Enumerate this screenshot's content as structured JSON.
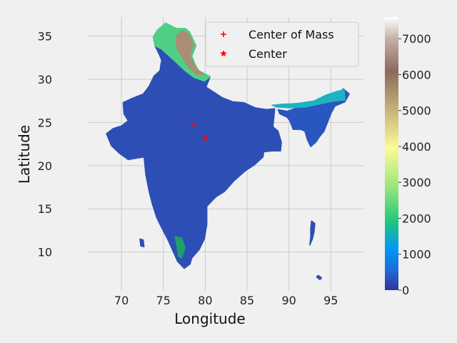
{
  "chart_data": {
    "type": "scatter",
    "title": "",
    "xlabel": "Longitude",
    "ylabel": "Latitude",
    "xlim": [
      65.9,
      98.9
    ],
    "ylim": [
      5.5,
      37.2
    ],
    "xticks": [
      70,
      75,
      80,
      85,
      90,
      95
    ],
    "yticks": [
      10,
      15,
      20,
      25,
      30,
      35
    ],
    "grid": true,
    "legend_position": "top-right",
    "series": [
      {
        "name": "Center of Mass",
        "marker": "plus",
        "color": "#ff0000",
        "points": [
          [
            78.6,
            24.8
          ]
        ]
      },
      {
        "name": "Center",
        "marker": "star",
        "color": "#ff0000",
        "points": [
          [
            80.0,
            23.2
          ]
        ]
      }
    ],
    "colorbar": {
      "colormap": "terrain",
      "range": [
        0,
        7600
      ],
      "ticks": [
        0,
        1000,
        2000,
        3000,
        4000,
        5000,
        6000,
        7000
      ]
    },
    "regions": {
      "mainland": [
        [
          68.2,
          23.7
        ],
        [
          68.8,
          22.3
        ],
        [
          69.8,
          21.4
        ],
        [
          70.8,
          20.7
        ],
        [
          72.7,
          21.0
        ],
        [
          72.9,
          19.0
        ],
        [
          73.3,
          17.0
        ],
        [
          73.7,
          15.5
        ],
        [
          74.2,
          14.0
        ],
        [
          74.8,
          12.8
        ],
        [
          75.5,
          11.5
        ],
        [
          76.2,
          10.0
        ],
        [
          76.7,
          8.9
        ],
        [
          77.5,
          8.1
        ],
        [
          78.2,
          8.6
        ],
        [
          78.4,
          9.3
        ],
        [
          79.3,
          10.3
        ],
        [
          79.9,
          11.5
        ],
        [
          80.2,
          13.2
        ],
        [
          80.2,
          15.3
        ],
        [
          81.3,
          16.4
        ],
        [
          82.3,
          17.0
        ],
        [
          83.4,
          18.2
        ],
        [
          84.8,
          19.4
        ],
        [
          85.9,
          20.1
        ],
        [
          86.9,
          21.0
        ],
        [
          87.0,
          21.6
        ],
        [
          88.0,
          21.7
        ],
        [
          89.0,
          21.7
        ],
        [
          89.1,
          22.7
        ],
        [
          88.7,
          24.0
        ],
        [
          88.1,
          24.5
        ],
        [
          88.2,
          25.5
        ],
        [
          88.3,
          26.6
        ],
        [
          87.3,
          26.5
        ],
        [
          86.0,
          26.7
        ],
        [
          84.6,
          27.3
        ],
        [
          83.3,
          27.4
        ],
        [
          82.0,
          27.9
        ],
        [
          80.9,
          28.6
        ],
        [
          80.1,
          29.1
        ],
        [
          80.6,
          30.3
        ],
        [
          79.2,
          31.0
        ],
        [
          78.8,
          31.7
        ],
        [
          78.4,
          32.7
        ],
        [
          78.9,
          33.9
        ],
        [
          78.1,
          35.5
        ],
        [
          77.6,
          35.9
        ],
        [
          76.5,
          35.9
        ],
        [
          75.3,
          36.5
        ],
        [
          74.3,
          35.7
        ],
        [
          73.8,
          34.9
        ],
        [
          74.0,
          33.9
        ],
        [
          74.5,
          32.9
        ],
        [
          74.8,
          32.2
        ],
        [
          74.7,
          31.7
        ],
        [
          74.6,
          31.0
        ],
        [
          73.9,
          30.4
        ],
        [
          73.3,
          29.2
        ],
        [
          72.6,
          28.3
        ],
        [
          71.3,
          27.8
        ],
        [
          70.2,
          27.3
        ],
        [
          70.3,
          26.0
        ],
        [
          70.8,
          25.2
        ],
        [
          70.0,
          24.6
        ],
        [
          69.0,
          24.3
        ]
      ],
      "northeast": [
        [
          88.7,
          26.5
        ],
        [
          89.8,
          26.3
        ],
        [
          91.5,
          26.9
        ],
        [
          93.0,
          27.0
        ],
        [
          94.2,
          27.6
        ],
        [
          95.4,
          28.0
        ],
        [
          96.5,
          28.9
        ],
        [
          97.2,
          28.3
        ],
        [
          96.7,
          27.4
        ],
        [
          95.5,
          26.9
        ],
        [
          95.0,
          26.0
        ],
        [
          94.6,
          25.0
        ],
        [
          94.2,
          24.0
        ],
        [
          93.7,
          23.4
        ],
        [
          93.2,
          22.7
        ],
        [
          92.6,
          22.2
        ],
        [
          92.2,
          23.0
        ],
        [
          91.9,
          24.0
        ],
        [
          91.4,
          24.2
        ],
        [
          90.5,
          24.2
        ],
        [
          90.1,
          25.2
        ],
        [
          89.8,
          25.6
        ],
        [
          88.9,
          26.0
        ]
      ],
      "andaman": [
        [
          92.7,
          13.6
        ],
        [
          93.1,
          13.3
        ],
        [
          93.0,
          12.3
        ],
        [
          92.8,
          11.5
        ],
        [
          92.5,
          10.8
        ],
        [
          92.6,
          11.8
        ],
        [
          92.6,
          12.8
        ]
      ],
      "nicobar": [
        [
          93.5,
          7.3
        ],
        [
          93.9,
          7.0
        ],
        [
          93.7,
          6.8
        ],
        [
          93.3,
          7.1
        ]
      ],
      "lakshadweep": [
        [
          72.2,
          11.5
        ],
        [
          72.6,
          11.4
        ],
        [
          72.7,
          10.6
        ],
        [
          72.3,
          10.7
        ]
      ],
      "high_terrain_north": [
        [
          74.3,
          35.7
        ],
        [
          75.3,
          36.5
        ],
        [
          76.5,
          35.9
        ],
        [
          77.6,
          35.9
        ],
        [
          78.1,
          35.5
        ],
        [
          78.9,
          33.9
        ],
        [
          78.4,
          32.7
        ],
        [
          78.8,
          31.7
        ],
        [
          79.2,
          31.0
        ],
        [
          80.6,
          30.3
        ],
        [
          79.9,
          29.8
        ],
        [
          78.7,
          30.2
        ],
        [
          77.6,
          31.0
        ],
        [
          76.5,
          32.0
        ],
        [
          75.6,
          32.8
        ],
        [
          74.8,
          33.5
        ],
        [
          74.0,
          33.9
        ],
        [
          73.8,
          34.9
        ]
      ],
      "very_high_terrain": [
        [
          77.2,
          35.6
        ],
        [
          78.0,
          35.3
        ],
        [
          78.6,
          34.0
        ],
        [
          78.2,
          32.9
        ],
        [
          78.6,
          31.8
        ],
        [
          79.0,
          31.2
        ],
        [
          79.8,
          30.6
        ],
        [
          78.9,
          30.6
        ],
        [
          78.0,
          31.4
        ],
        [
          77.3,
          32.5
        ],
        [
          76.6,
          33.6
        ],
        [
          76.5,
          34.9
        ]
      ],
      "high_terrain_east": [
        [
          88.0,
          27.0
        ],
        [
          89.0,
          27.1
        ],
        [
          91.0,
          27.2
        ],
        [
          93.0,
          27.5
        ],
        [
          94.5,
          28.2
        ],
        [
          95.7,
          28.6
        ],
        [
          96.6,
          28.8
        ],
        [
          96.7,
          27.6
        ],
        [
          95.5,
          27.5
        ],
        [
          94.0,
          27.2
        ],
        [
          92.0,
          26.8
        ],
        [
          90.0,
          26.7
        ],
        [
          88.5,
          26.8
        ]
      ],
      "mid_terrain_south": [
        [
          76.4,
          11.8
        ],
        [
          77.2,
          11.6
        ],
        [
          77.6,
          10.5
        ],
        [
          77.2,
          9.3
        ],
        [
          76.8,
          9.5
        ],
        [
          76.6,
          10.8
        ]
      ]
    }
  }
}
